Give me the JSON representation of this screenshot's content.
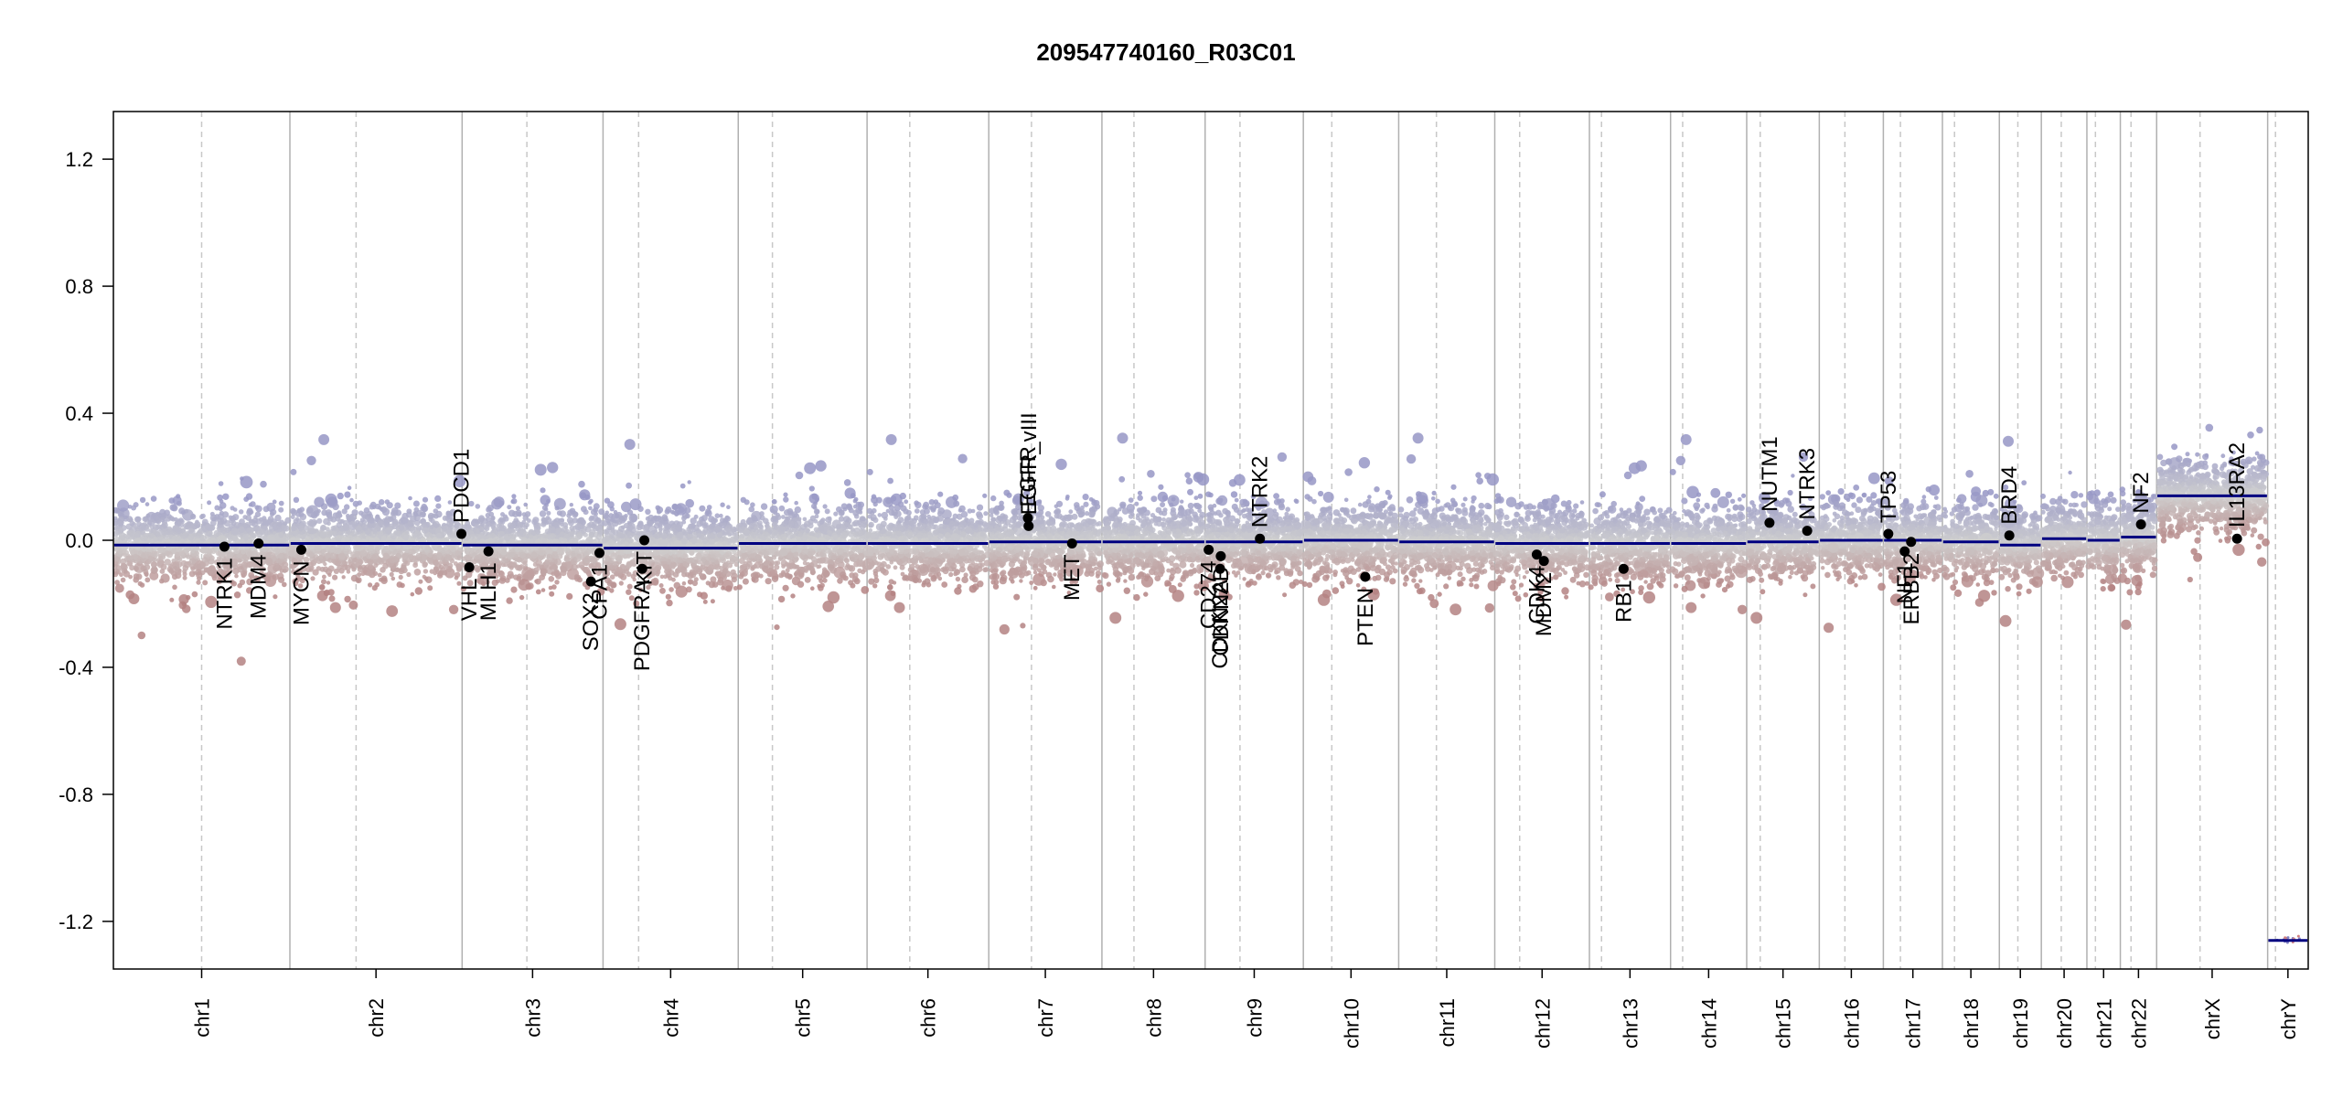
{
  "chart_data": {
    "type": "scatter",
    "title": "209547740160_R03C01",
    "xlabel": "",
    "ylabel": "",
    "ylim": [
      -1.35,
      1.35
    ],
    "y_ticks": [
      "-1.2",
      "-0.8",
      "-0.4",
      "0.0",
      "0.4",
      "0.8",
      "1.2"
    ],
    "y_tick_values": [
      -1.2,
      -0.8,
      -0.4,
      0.0,
      0.4,
      0.8,
      1.2
    ],
    "grid": false,
    "colors": {
      "segment": "#000080",
      "gain": "#9b9bc6",
      "loss": "#b78a8a",
      "neutral": "#cfcfcf",
      "gene_marker": "#000000"
    },
    "chromosomes": [
      {
        "name": "chr1",
        "start": 0,
        "end": 248,
        "centromere": 124,
        "segment": -0.015
      },
      {
        "name": "chr2",
        "start": 248,
        "end": 490,
        "centromere": 341,
        "segment": -0.01
      },
      {
        "name": "chr3",
        "start": 490,
        "end": 688,
        "centromere": 581,
        "segment": -0.015
      },
      {
        "name": "chr4",
        "start": 688,
        "end": 878,
        "centromere": 738,
        "segment": -0.025
      },
      {
        "name": "chr5",
        "start": 878,
        "end": 1059,
        "centromere": 926,
        "segment": -0.01
      },
      {
        "name": "chr6",
        "start": 1059,
        "end": 1230,
        "centromere": 1119,
        "segment": -0.01
      },
      {
        "name": "chr7",
        "start": 1230,
        "end": 1389,
        "centromere": 1290,
        "segment": -0.005
      },
      {
        "name": "chr8",
        "start": 1389,
        "end": 1534,
        "centromere": 1434,
        "segment": -0.005
      },
      {
        "name": "chr9",
        "start": 1534,
        "end": 1672,
        "centromere": 1583,
        "segment": -0.005
      },
      {
        "name": "chr10",
        "start": 1672,
        "end": 1806,
        "centromere": 1712,
        "segment": 0.0
      },
      {
        "name": "chr11",
        "start": 1806,
        "end": 1941,
        "centromere": 1859,
        "segment": -0.005
      },
      {
        "name": "chr12",
        "start": 1941,
        "end": 2074,
        "centromere": 1976,
        "segment": -0.01
      },
      {
        "name": "chr13",
        "start": 2074,
        "end": 2188,
        "centromere": 2091,
        "segment": -0.01
      },
      {
        "name": "chr14",
        "start": 2188,
        "end": 2295,
        "centromere": 2205,
        "segment": -0.01
      },
      {
        "name": "chr15",
        "start": 2295,
        "end": 2397,
        "centromere": 2314,
        "segment": -0.005
      },
      {
        "name": "chr16",
        "start": 2397,
        "end": 2487,
        "centromere": 2433,
        "segment": 0.0
      },
      {
        "name": "chr17",
        "start": 2487,
        "end": 2570,
        "centromere": 2511,
        "segment": 0.0
      },
      {
        "name": "chr18",
        "start": 2570,
        "end": 2650,
        "centromere": 2587,
        "segment": -0.005
      },
      {
        "name": "chr19",
        "start": 2650,
        "end": 2709,
        "centromere": 2676,
        "segment": -0.015
      },
      {
        "name": "chr20",
        "start": 2709,
        "end": 2773,
        "centromere": 2737,
        "segment": 0.005
      },
      {
        "name": "chr21",
        "start": 2773,
        "end": 2820,
        "centromere": 2785,
        "segment": 0.0
      },
      {
        "name": "chr22",
        "start": 2820,
        "end": 2871,
        "centromere": 2835,
        "segment": 0.01
      },
      {
        "name": "chrX",
        "start": 2871,
        "end": 3027,
        "centromere": 2932,
        "segment": 0.14
      },
      {
        "name": "chrY",
        "start": 3027,
        "end": 3084,
        "centromere": 3038,
        "segment": -1.26
      }
    ],
    "genes": [
      {
        "name": "NTRK1",
        "pos": 156,
        "value": -0.02,
        "label_side": "below"
      },
      {
        "name": "MDM4",
        "pos": 204,
        "value": -0.01,
        "label_side": "below"
      },
      {
        "name": "MYCN",
        "pos": 264,
        "value": -0.03,
        "label_side": "below"
      },
      {
        "name": "PDCD1",
        "pos": 489,
        "value": 0.02,
        "label_side": "above"
      },
      {
        "name": "VHL",
        "pos": 500,
        "value": -0.085,
        "label_side": "below"
      },
      {
        "name": "MLH1",
        "pos": 527,
        "value": -0.035,
        "label_side": "below"
      },
      {
        "name": "SOX2",
        "pos": 671,
        "value": -0.13,
        "label_side": "below"
      },
      {
        "name": "CPA1",
        "pos": 683,
        "value": -0.04,
        "label_side": "below"
      },
      {
        "name": "PDGFRA",
        "pos": 743,
        "value": -0.09,
        "label_side": "below"
      },
      {
        "name": "KIT",
        "pos": 746,
        "value": 0.0,
        "label_side": "below"
      },
      {
        "name": "EGFR",
        "pos": 1285,
        "value": 0.07,
        "label_side": "above"
      },
      {
        "name": "EGFR_vIII",
        "pos": 1286,
        "value": 0.045,
        "label_side": "above"
      },
      {
        "name": "MET",
        "pos": 1347,
        "value": -0.01,
        "label_side": "below"
      },
      {
        "name": "CD274",
        "pos": 1539,
        "value": -0.03,
        "label_side": "below"
      },
      {
        "name": "CDKN2A",
        "pos": 1555,
        "value": -0.09,
        "label_side": "below"
      },
      {
        "name": "CDKN2B",
        "pos": 1556,
        "value": -0.05,
        "label_side": "below"
      },
      {
        "name": "NTRK2",
        "pos": 1611,
        "value": 0.005,
        "label_side": "above"
      },
      {
        "name": "PTEN",
        "pos": 1759,
        "value": -0.115,
        "label_side": "below"
      },
      {
        "name": "CDK4",
        "pos": 2000,
        "value": -0.045,
        "label_side": "below"
      },
      {
        "name": "MDM2",
        "pos": 2010,
        "value": -0.065,
        "label_side": "below"
      },
      {
        "name": "RB1",
        "pos": 2122,
        "value": -0.09,
        "label_side": "below"
      },
      {
        "name": "NUTM1",
        "pos": 2327,
        "value": 0.055,
        "label_side": "above"
      },
      {
        "name": "NTRK3",
        "pos": 2380,
        "value": 0.03,
        "label_side": "above"
      },
      {
        "name": "TP53",
        "pos": 2494,
        "value": 0.02,
        "label_side": "above"
      },
      {
        "name": "NF1",
        "pos": 2517,
        "value": -0.035,
        "label_side": "below"
      },
      {
        "name": "ERBB2",
        "pos": 2526,
        "value": -0.005,
        "label_side": "below"
      },
      {
        "name": "BRD4",
        "pos": 2664,
        "value": 0.015,
        "label_side": "above"
      },
      {
        "name": "NF2",
        "pos": 2849,
        "value": 0.05,
        "label_side": "above"
      },
      {
        "name": "IL13RA2",
        "pos": 2984,
        "value": 0.005,
        "label_side": "above"
      }
    ]
  }
}
